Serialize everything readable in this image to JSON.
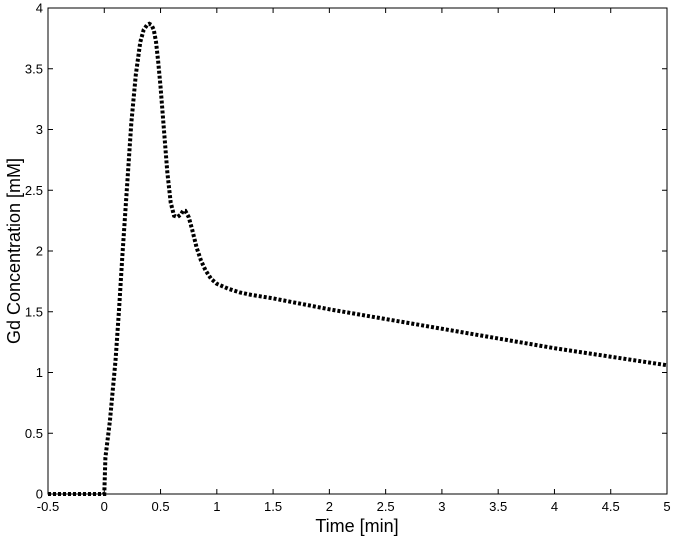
{
  "chart_data": {
    "type": "line",
    "title": "",
    "xlabel": "Time [min]",
    "ylabel": "Gd Concentration [mM]",
    "xlim": [
      -0.5,
      5
    ],
    "ylim": [
      0,
      4
    ],
    "xticks": [
      -0.5,
      0,
      0.5,
      1,
      1.5,
      2,
      2.5,
      3,
      3.5,
      4,
      4.5,
      5
    ],
    "xtick_labels": [
      "-0.5",
      "0",
      "0.5",
      "1",
      "1.5",
      "2",
      "2.5",
      "3",
      "3.5",
      "4",
      "4.5",
      "5"
    ],
    "yticks": [
      0,
      0.5,
      1,
      1.5,
      2,
      2.5,
      3,
      3.5,
      4
    ],
    "ytick_labels": [
      "0",
      "0.5",
      "1",
      "1.5",
      "2",
      "2.5",
      "3",
      "3.5",
      "4"
    ],
    "grid": false,
    "line_style": "dotted",
    "line_color": "#000000",
    "series": [
      {
        "x": [
          -0.5,
          -0.4,
          -0.3,
          -0.2,
          -0.1,
          0,
          0.01,
          0.03,
          0.05,
          0.08,
          0.1,
          0.13,
          0.16,
          0.2,
          0.24,
          0.28,
          0.32,
          0.35,
          0.38,
          0.4,
          0.42,
          0.44,
          0.46,
          0.48,
          0.5,
          0.53,
          0.56,
          0.59,
          0.62,
          0.65,
          0.68,
          0.7,
          0.72,
          0.75,
          0.78,
          0.82,
          0.86,
          0.9,
          0.95,
          1.0,
          1.05,
          1.1,
          1.2,
          1.3,
          1.5,
          2,
          2.5,
          3,
          3.5,
          4,
          4.5,
          5
        ],
        "y": [
          0,
          0,
          0,
          0,
          0,
          0,
          0.3,
          0.45,
          0.6,
          0.9,
          1.1,
          1.5,
          1.95,
          2.5,
          3.05,
          3.45,
          3.72,
          3.82,
          3.86,
          3.87,
          3.86,
          3.82,
          3.72,
          3.55,
          3.35,
          3.0,
          2.65,
          2.4,
          2.29,
          2.28,
          2.3,
          2.33,
          2.33,
          2.28,
          2.18,
          2.03,
          1.92,
          1.84,
          1.77,
          1.73,
          1.71,
          1.69,
          1.66,
          1.64,
          1.61,
          1.52,
          1.44,
          1.36,
          1.28,
          1.2,
          1.13,
          1.06
        ]
      }
    ]
  }
}
